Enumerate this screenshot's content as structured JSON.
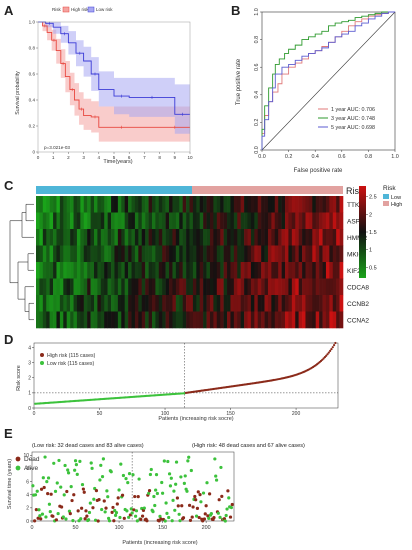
{
  "panels": {
    "A": {
      "label": "A"
    },
    "B": {
      "label": "B"
    },
    "C": {
      "label": "C"
    },
    "D": {
      "label": "D"
    },
    "E": {
      "label": "E"
    }
  },
  "colors": {
    "high": "#e8473f",
    "high_band": "#f4a3a0",
    "low": "#3b3bd6",
    "low_band": "#a7a7f2",
    "roc1": "#e07a7a",
    "roc3": "#2e9a2e",
    "roc5": "#5b5bd0",
    "risk_low_bar": "#4fb6d8",
    "risk_high_bar": "#e2a2a0",
    "dead": "#8b2a1a",
    "alive": "#3cc23c",
    "heat_low": "#1aa31a",
    "heat_mid": "#111111",
    "heat_high": "#cc1111"
  },
  "chart_data": [
    {
      "type": "line",
      "panel": "A",
      "title": "",
      "legend": {
        "title": "Risk",
        "entries": [
          "High risk",
          "Low risk"
        ]
      },
      "xlabel": "Time(years)",
      "ylabel": "Survival probability",
      "xlim": [
        0,
        10
      ],
      "ylim": [
        0,
        1
      ],
      "xticks": [
        "0",
        "1",
        "2",
        "3",
        "4",
        "5",
        "6",
        "7",
        "8",
        "9",
        "10"
      ],
      "yticks": [
        "0",
        "0.2",
        "0.4",
        "0.6",
        "0.8",
        "1.0"
      ],
      "annotation": "p=3.021e-03",
      "series": [
        {
          "name": "High risk",
          "x": [
            0,
            0.3,
            0.6,
            0.9,
            1.2,
            1.5,
            1.8,
            2.1,
            2.4,
            2.7,
            3.0,
            3.5,
            4.0,
            5.0,
            6.0,
            8.0,
            10.0
          ],
          "y": [
            1.0,
            0.97,
            0.92,
            0.86,
            0.78,
            0.68,
            0.58,
            0.48,
            0.4,
            0.33,
            0.28,
            0.27,
            0.19,
            0.19,
            0.19,
            0.19,
            0.19
          ],
          "lower": [
            1.0,
            0.93,
            0.86,
            0.78,
            0.68,
            0.57,
            0.46,
            0.36,
            0.28,
            0.21,
            0.17,
            0.15,
            0.08,
            0.08,
            0.08,
            0.08,
            0.08
          ],
          "upper": [
            1.0,
            1.0,
            0.98,
            0.94,
            0.87,
            0.79,
            0.7,
            0.61,
            0.53,
            0.46,
            0.41,
            0.39,
            0.35,
            0.35,
            0.35,
            0.35,
            0.35
          ]
        },
        {
          "name": "Low risk",
          "x": [
            0,
            0.5,
            1.0,
            1.5,
            2.0,
            2.5,
            3.0,
            3.5,
            4.0,
            5.0,
            6.0,
            7.0,
            8.0,
            9.0,
            10.0
          ],
          "y": [
            1.0,
            0.99,
            0.96,
            0.91,
            0.84,
            0.76,
            0.7,
            0.6,
            0.48,
            0.43,
            0.42,
            0.42,
            0.42,
            0.29,
            0.29
          ],
          "lower": [
            1.0,
            0.96,
            0.91,
            0.84,
            0.75,
            0.66,
            0.58,
            0.47,
            0.35,
            0.29,
            0.27,
            0.27,
            0.27,
            0.14,
            0.14
          ],
          "upper": [
            1.0,
            1.0,
            1.0,
            0.97,
            0.93,
            0.86,
            0.81,
            0.73,
            0.62,
            0.57,
            0.57,
            0.57,
            0.57,
            0.52,
            0.52
          ]
        }
      ]
    },
    {
      "type": "line",
      "panel": "B",
      "xlabel": "False positive rate",
      "ylabel": "True positive rate",
      "xlim": [
        0,
        1
      ],
      "ylim": [
        0,
        1
      ],
      "xticks": [
        "0.0",
        "0.2",
        "0.4",
        "0.6",
        "0.8",
        "1.0"
      ],
      "yticks": [
        "0.0",
        "0.2",
        "0.4",
        "0.6",
        "0.8",
        "1.0"
      ],
      "series": [
        {
          "name": "1 year AUC: 0.706",
          "x": [
            0,
            0.02,
            0.05,
            0.08,
            0.12,
            0.15,
            0.2,
            0.25,
            0.3,
            0.35,
            0.4,
            0.45,
            0.5,
            0.55,
            0.6,
            0.65,
            0.7,
            0.75,
            0.8,
            0.85,
            0.9,
            0.95,
            1.0
          ],
          "y": [
            0,
            0.12,
            0.25,
            0.35,
            0.42,
            0.48,
            0.55,
            0.6,
            0.63,
            0.66,
            0.7,
            0.72,
            0.75,
            0.78,
            0.82,
            0.86,
            0.9,
            0.93,
            0.95,
            0.97,
            0.98,
            0.99,
            1.0
          ]
        },
        {
          "name": "3 year AUC: 0.748",
          "x": [
            0,
            0.02,
            0.05,
            0.08,
            0.1,
            0.13,
            0.17,
            0.2,
            0.25,
            0.3,
            0.35,
            0.4,
            0.45,
            0.5,
            0.55,
            0.6,
            0.65,
            0.7,
            0.75,
            0.8,
            0.85,
            0.9,
            1.0
          ],
          "y": [
            0,
            0.15,
            0.32,
            0.45,
            0.55,
            0.62,
            0.66,
            0.7,
            0.73,
            0.76,
            0.8,
            0.82,
            0.84,
            0.86,
            0.9,
            0.92,
            0.93,
            0.94,
            0.96,
            0.97,
            0.98,
            0.99,
            1.0
          ]
        },
        {
          "name": "5 year AUC: 0.698",
          "x": [
            0,
            0.02,
            0.05,
            0.08,
            0.1,
            0.15,
            0.2,
            0.25,
            0.3,
            0.35,
            0.4,
            0.45,
            0.5,
            0.55,
            0.6,
            0.65,
            0.7,
            0.75,
            0.8,
            0.85,
            0.9,
            0.95,
            1.0
          ],
          "y": [
            0,
            0.1,
            0.22,
            0.35,
            0.45,
            0.55,
            0.6,
            0.62,
            0.65,
            0.68,
            0.7,
            0.72,
            0.74,
            0.78,
            0.82,
            0.84,
            0.86,
            0.9,
            0.92,
            0.95,
            0.97,
            0.99,
            1.0
          ]
        }
      ]
    },
    {
      "type": "heatmap",
      "panel": "C",
      "rows": [
        "TTK",
        "ASPM",
        "HMMR",
        "MKI67",
        "KIF2C",
        "CDCA8",
        "CCNB2",
        "CCNA2"
      ],
      "annotation_title": "Risk",
      "annotation_legend": [
        "Low",
        "High"
      ],
      "colorbar_ticks": [
        "2.5",
        "2",
        "1.5",
        "1",
        "0.5"
      ],
      "n_low": 115,
      "n_high": 115
    },
    {
      "type": "scatter",
      "panel": "D",
      "xlabel": "Patients (increasing risk socre)",
      "ylabel": "Risk score",
      "xticks": [
        "0",
        "50",
        "100",
        "150",
        "200"
      ],
      "yticks": [
        "0",
        "1",
        "2",
        "3",
        "4"
      ],
      "xlim": [
        0,
        232
      ],
      "ylim": [
        0,
        4.3
      ],
      "cutoff_x": 115,
      "cutoff_y": 1,
      "legend": [
        "High risk (115 cases)",
        "Low risk (115 cases)"
      ]
    },
    {
      "type": "scatter",
      "panel": "E",
      "xlabel": "Patients (increasing risk score)",
      "ylabel": "Survival time (years)",
      "xticks": [
        "0",
        "50",
        "100",
        "150",
        "200"
      ],
      "yticks": [
        "0",
        "2",
        "4",
        "6",
        "8",
        "10"
      ],
      "xlim": [
        0,
        232
      ],
      "ylim": [
        0,
        10.5
      ],
      "cutoff_x": 115,
      "low_text": "(Low risk: 32 dead cases and 83 alive cases)",
      "high_text": "(High risk: 48 dead cases and 67 alive cases)",
      "legend": [
        "Dead",
        "Alive"
      ]
    }
  ]
}
